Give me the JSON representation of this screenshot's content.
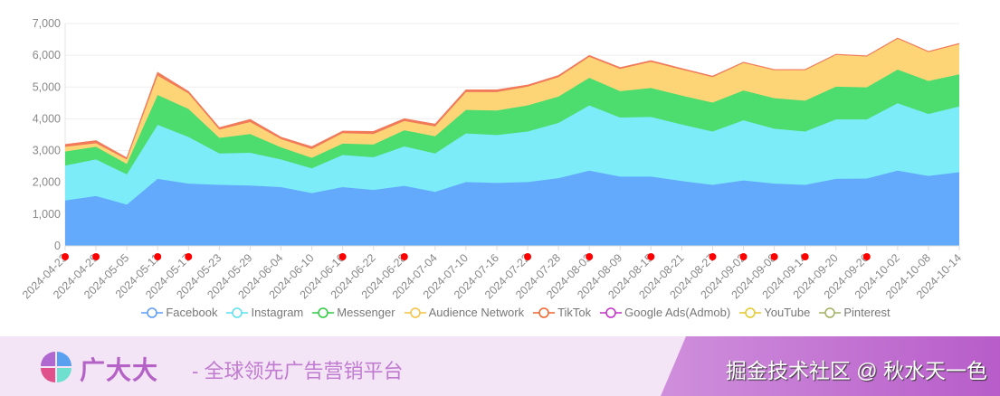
{
  "chart_data": {
    "type": "area",
    "stacked": true,
    "title": "",
    "xlabel": "",
    "ylabel": "",
    "ylim": [
      0,
      7000
    ],
    "yticks": [
      "0",
      "1,000",
      "2,000",
      "3,000",
      "4,000",
      "5,000",
      "6,000",
      "7,000"
    ],
    "grid": true,
    "legend_position": "bottom",
    "categories": [
      "2024-04-23",
      "2024-04-29",
      "2024-05-05",
      "2024-05-11",
      "2024-05-17",
      "2024-05-23",
      "2024-05-29",
      "2024-06-04",
      "2024-06-10",
      "2024-06-16",
      "2024-06-22",
      "2024-06-28",
      "2024-07-04",
      "2024-07-10",
      "2024-07-16",
      "2024-07-22",
      "2024-07-28",
      "2024-08-03",
      "2024-08-09",
      "2024-08-15",
      "2024-08-21",
      "2024-08-27",
      "2024-09-02",
      "2024-09-08",
      "2024-09-14",
      "2024-09-20",
      "2024-09-26",
      "2024-10-02",
      "2024-10-08",
      "2024-10-14"
    ],
    "marked_dates": [
      "2024-04-23",
      "2024-04-29",
      "2024-05-11",
      "2024-05-17",
      "2024-06-16",
      "2024-06-28",
      "2024-07-22",
      "2024-08-03",
      "2024-08-15",
      "2024-08-27",
      "2024-09-02",
      "2024-09-08",
      "2024-09-14",
      "2024-09-26"
    ],
    "marker_color": "#ff0000",
    "series": [
      {
        "name": "Facebook",
        "color": "#5b9bf8",
        "fill": "#63a9fc",
        "values": [
          1430,
          1570,
          1300,
          2110,
          1960,
          1920,
          1900,
          1850,
          1660,
          1850,
          1760,
          1890,
          1700,
          2010,
          1980,
          2010,
          2130,
          2370,
          2180,
          2180,
          2040,
          1920,
          2060,
          1960,
          1920,
          2110,
          2120,
          2370,
          2200,
          2320
        ]
      },
      {
        "name": "Instagram",
        "color": "#5ee0ef",
        "fill": "#7cecf9",
        "values": [
          1100,
          1150,
          950,
          1700,
          1470,
          990,
          1030,
          870,
          780,
          1010,
          1030,
          1240,
          1210,
          1530,
          1510,
          1590,
          1740,
          2050,
          1860,
          1880,
          1780,
          1680,
          1890,
          1730,
          1680,
          1870,
          1860,
          2120,
          1950,
          2070
        ]
      },
      {
        "name": "Messenger",
        "color": "#2ecc40",
        "fill": "#4ddc6e",
        "values": [
          440,
          400,
          330,
          940,
          880,
          490,
          590,
          380,
          330,
          360,
          400,
          510,
          540,
          740,
          770,
          820,
          830,
          870,
          830,
          910,
          910,
          910,
          940,
          960,
          970,
          1030,
          1010,
          1060,
          1040,
          1010
        ]
      },
      {
        "name": "Audience Network",
        "color": "#f5c242",
        "fill": "#fdd576",
        "values": [
          150,
          110,
          140,
          610,
          490,
          260,
          380,
          260,
          280,
          330,
          330,
          290,
          310,
          560,
          580,
          590,
          610,
          660,
          700,
          820,
          820,
          800,
          870,
          880,
          960,
          1000,
          970,
          970,
          910,
          950
        ]
      },
      {
        "name": "TikTok",
        "color": "#f0652e",
        "fill": "#f07a5a",
        "values": [
          70,
          80,
          50,
          100,
          60,
          60,
          80,
          60,
          70,
          60,
          80,
          70,
          70,
          70,
          70,
          50,
          50,
          40,
          40,
          40,
          30,
          30,
          20,
          20,
          20,
          20,
          20,
          20,
          20,
          20
        ]
      },
      {
        "name": "Google Ads(Admob)",
        "color": "#c32fc8",
        "fill": "#c32fc8",
        "values": [
          0,
          0,
          0,
          0,
          0,
          0,
          0,
          0,
          0,
          0,
          0,
          0,
          0,
          0,
          0,
          0,
          0,
          0,
          0,
          0,
          0,
          0,
          0,
          0,
          0,
          0,
          0,
          0,
          0,
          0
        ]
      },
      {
        "name": "YouTube",
        "color": "#e6c92a",
        "fill": "#e6c92a",
        "values": [
          0,
          0,
          0,
          0,
          0,
          0,
          0,
          0,
          0,
          0,
          0,
          0,
          0,
          0,
          0,
          0,
          0,
          0,
          0,
          0,
          0,
          0,
          0,
          0,
          0,
          0,
          0,
          0,
          0,
          0
        ]
      },
      {
        "name": "Pinterest",
        "color": "#a0b060",
        "fill": "#a0b060",
        "values": [
          0,
          0,
          0,
          0,
          0,
          0,
          0,
          0,
          0,
          0,
          0,
          0,
          0,
          0,
          0,
          0,
          0,
          0,
          0,
          0,
          0,
          0,
          0,
          0,
          0,
          0,
          0,
          0,
          0,
          0
        ]
      }
    ]
  },
  "banner": {
    "brand": "广大大",
    "slogan": "- 全球领先广告营销平台",
    "credit": "掘金技术社区 @ 秋水天一色"
  }
}
